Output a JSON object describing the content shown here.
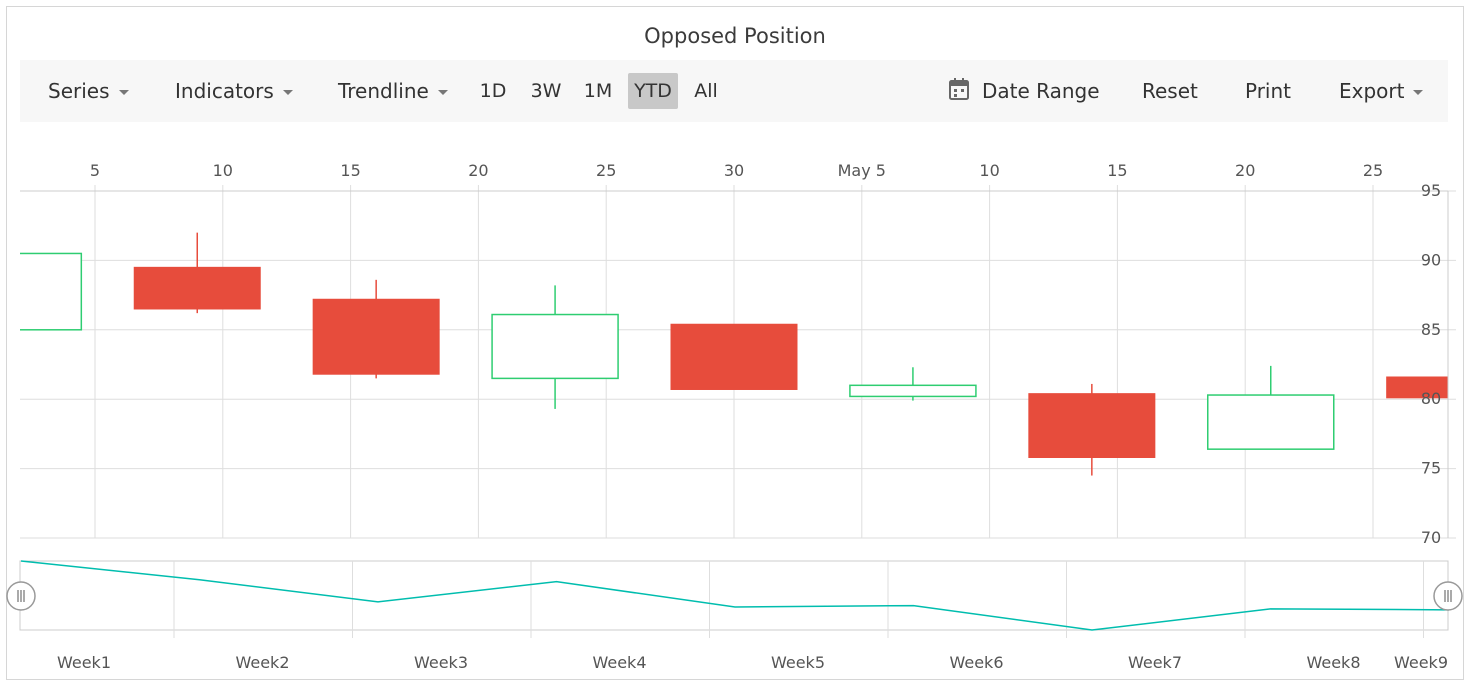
{
  "title": "Opposed Position",
  "toolbar": {
    "series_label": "Series",
    "indicators_label": "Indicators",
    "trendline_label": "Trendline",
    "periods": [
      "1D",
      "3W",
      "1M",
      "YTD",
      "All"
    ],
    "active_period": "YTD",
    "date_range_label": "Date Range",
    "reset_label": "Reset",
    "print_label": "Print",
    "export_label": "Export"
  },
  "colors": {
    "bull": "#2ecd71",
    "bear": "#e74c3c",
    "navigator_line": "#00bdae",
    "grid": "#dedede",
    "toolbar_bg": "#f7f7f7",
    "active_period_bg": "#c8c8c8"
  },
  "chart_data": [
    {
      "type": "candlestick",
      "title": "Opposed Position",
      "x_axis": {
        "position": "top",
        "tick_labels": [
          "5",
          "10",
          "15",
          "20",
          "25",
          "30",
          "May 5",
          "10",
          "15",
          "20",
          "25"
        ],
        "tick_dates": [
          "Apr 5",
          "Apr 10",
          "Apr 15",
          "Apr 20",
          "Apr 25",
          "Apr 30",
          "May 5",
          "May 10",
          "May 15",
          "May 20",
          "May 25"
        ],
        "range": [
          "Apr 2",
          "May 28"
        ]
      },
      "y_axis": {
        "position": "right (opposed)",
        "ylim": [
          70,
          95
        ],
        "interval": 5,
        "tick_labels": [
          "70",
          "75",
          "80",
          "85",
          "90",
          "95"
        ]
      },
      "grid": true,
      "candles": [
        {
          "date": "Apr 2",
          "open": 85.0,
          "high": 90.5,
          "low": 85.0,
          "close": 90.5
        },
        {
          "date": "Apr 9",
          "open": 89.5,
          "high": 92.0,
          "low": 86.2,
          "close": 86.5
        },
        {
          "date": "Apr 16",
          "open": 87.2,
          "high": 88.6,
          "low": 81.5,
          "close": 81.8
        },
        {
          "date": "Apr 23",
          "open": 81.5,
          "high": 88.2,
          "low": 79.3,
          "close": 86.1
        },
        {
          "date": "Apr 30",
          "open": 85.4,
          "high": 85.4,
          "low": 80.7,
          "close": 80.7
        },
        {
          "date": "May 7",
          "open": 80.2,
          "high": 82.3,
          "low": 79.9,
          "close": 81.0
        },
        {
          "date": "May 14",
          "open": 80.4,
          "high": 81.1,
          "low": 74.5,
          "close": 75.8
        },
        {
          "date": "May 21",
          "open": 76.4,
          "high": 82.4,
          "low": 76.4,
          "close": 80.3
        },
        {
          "date": "May 28",
          "open": 81.6,
          "high": 83.1,
          "low": 80.1,
          "close": 80.1
        }
      ]
    },
    {
      "type": "line",
      "name": "navigator",
      "x_labels": [
        "Week1",
        "Week2",
        "Week3",
        "Week4",
        "Week5",
        "Week6",
        "Week7",
        "Week8",
        "Week9"
      ],
      "x": [
        "Apr 2",
        "Apr 9",
        "Apr 16",
        "Apr 23",
        "Apr 30",
        "May 7",
        "May 14",
        "May 21",
        "May 28"
      ],
      "values": [
        90.5,
        86.5,
        81.8,
        86.1,
        80.7,
        81.0,
        75.8,
        80.3,
        80.1
      ]
    }
  ]
}
